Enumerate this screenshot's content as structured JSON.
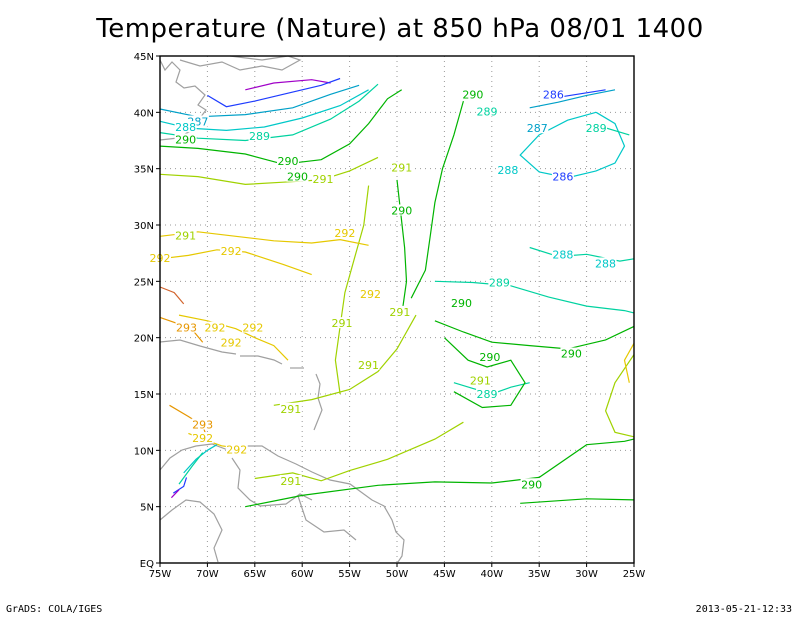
{
  "title": "Temperature (Nature) at 850 hPa 08/01 1400",
  "footer": {
    "left": "GrADS: COLA/IGES",
    "right": "2013-05-21-12:33"
  },
  "chart_data": {
    "type": "contour",
    "title": "Temperature (Nature) at 850 hPa 08/01 1400",
    "variable": "Temperature",
    "level": "850 hPa",
    "lon_range": [
      -75,
      -25
    ],
    "lat_range": [
      0,
      45
    ],
    "grid": "dotted",
    "x_ticks": [
      {
        "value": -75,
        "label": "75W"
      },
      {
        "value": -70,
        "label": "70W"
      },
      {
        "value": -65,
        "label": "65W"
      },
      {
        "value": -60,
        "label": "60W"
      },
      {
        "value": -55,
        "label": "55W"
      },
      {
        "value": -50,
        "label": "50W"
      },
      {
        "value": -45,
        "label": "45W"
      },
      {
        "value": -40,
        "label": "40W"
      },
      {
        "value": -35,
        "label": "35W"
      },
      {
        "value": -30,
        "label": "30W"
      },
      {
        "value": -25,
        "label": "25W"
      }
    ],
    "y_ticks": [
      {
        "value": 0,
        "label": "EQ"
      },
      {
        "value": 5,
        "label": "5N"
      },
      {
        "value": 10,
        "label": "10N"
      },
      {
        "value": 15,
        "label": "15N"
      },
      {
        "value": 20,
        "label": "20N"
      },
      {
        "value": 25,
        "label": "25N"
      },
      {
        "value": 30,
        "label": "30N"
      },
      {
        "value": 35,
        "label": "35N"
      },
      {
        "value": 40,
        "label": "40N"
      },
      {
        "value": 45,
        "label": "45N"
      }
    ],
    "contour_colors": {
      "286": "#1e3cff",
      "287": "#00a0c8",
      "288": "#00c8c8",
      "289": "#00d2a0",
      "290": "#00b400",
      "291": "#a0d200",
      "292": "#e6c800",
      "293": "#e69600",
      "294": "#d2642d",
      "285": "#a000c8"
    },
    "contour_labels": [
      {
        "lon": -42,
        "lat": 41.5,
        "text": "290"
      },
      {
        "lon": -33.5,
        "lat": 41.5,
        "text": "286"
      },
      {
        "lon": -40.5,
        "lat": 40,
        "text": "289"
      },
      {
        "lon": -71,
        "lat": 39.1,
        "text": "287"
      },
      {
        "lon": -35.2,
        "lat": 38.5,
        "text": "287"
      },
      {
        "lon": -72.3,
        "lat": 38.6,
        "text": "288"
      },
      {
        "lon": -64.5,
        "lat": 37.8,
        "text": "289"
      },
      {
        "lon": -29,
        "lat": 38.5,
        "text": "289"
      },
      {
        "lon": -72.3,
        "lat": 37.5,
        "text": "290"
      },
      {
        "lon": -61.5,
        "lat": 35.6,
        "text": "290"
      },
      {
        "lon": -49.5,
        "lat": 35,
        "text": "291"
      },
      {
        "lon": -60.5,
        "lat": 34.2,
        "text": "290"
      },
      {
        "lon": -57.8,
        "lat": 34.0,
        "text": "291"
      },
      {
        "lon": -38.3,
        "lat": 34.8,
        "text": "288"
      },
      {
        "lon": -32.5,
        "lat": 34.2,
        "text": "286"
      },
      {
        "lon": -49.5,
        "lat": 31.2,
        "text": "290"
      },
      {
        "lon": -55.5,
        "lat": 29.2,
        "text": "292"
      },
      {
        "lon": -72.3,
        "lat": 29.0,
        "text": "291"
      },
      {
        "lon": -67.5,
        "lat": 27.6,
        "text": "292"
      },
      {
        "lon": -32.5,
        "lat": 27.3,
        "text": "288"
      },
      {
        "lon": -28,
        "lat": 26.5,
        "text": "288"
      },
      {
        "lon": -75,
        "lat": 27.0,
        "text": "292"
      },
      {
        "lon": -39.2,
        "lat": 24.8,
        "text": "289"
      },
      {
        "lon": -52.8,
        "lat": 23.8,
        "text": "292"
      },
      {
        "lon": -43.2,
        "lat": 23.0,
        "text": "290"
      },
      {
        "lon": -49.7,
        "lat": 22.2,
        "text": "291"
      },
      {
        "lon": -55.8,
        "lat": 21.2,
        "text": "291"
      },
      {
        "lon": -72.2,
        "lat": 20.8,
        "text": "293"
      },
      {
        "lon": -69.2,
        "lat": 20.8,
        "text": "292"
      },
      {
        "lon": -65.2,
        "lat": 20.8,
        "text": "292"
      },
      {
        "lon": -67.5,
        "lat": 19.5,
        "text": "292"
      },
      {
        "lon": -40.2,
        "lat": 18.2,
        "text": "290"
      },
      {
        "lon": -31.6,
        "lat": 18.5,
        "text": "290"
      },
      {
        "lon": -53,
        "lat": 17.5,
        "text": "291"
      },
      {
        "lon": -41.2,
        "lat": 16.1,
        "text": "291"
      },
      {
        "lon": -40.5,
        "lat": 14.9,
        "text": "289"
      },
      {
        "lon": -61.2,
        "lat": 13.6,
        "text": "291"
      },
      {
        "lon": -70.5,
        "lat": 12.2,
        "text": "293"
      },
      {
        "lon": -70.5,
        "lat": 11.0,
        "text": "292"
      },
      {
        "lon": -66.9,
        "lat": 10.0,
        "text": "292"
      },
      {
        "lon": -61.2,
        "lat": 7.2,
        "text": "291"
      },
      {
        "lon": -35.8,
        "lat": 6.9,
        "text": "290"
      }
    ]
  }
}
